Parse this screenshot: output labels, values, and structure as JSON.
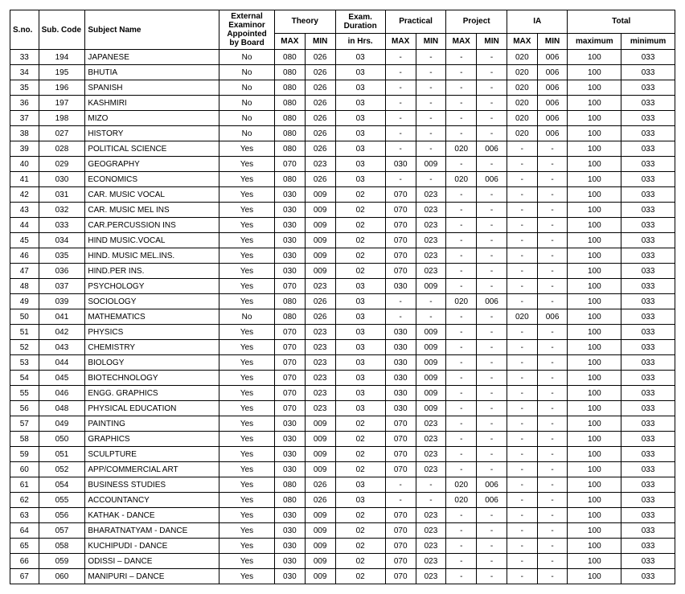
{
  "headers": {
    "sno": "S.no.",
    "code": "Sub. Code",
    "name": "Subject Name",
    "ext": "External Examinor Appointed by Board",
    "theory": "Theory",
    "duration": "Exam. Duration",
    "practical": "Practical",
    "project": "Project",
    "ia": "IA",
    "total": "Total",
    "max": "MAX",
    "min": "MIN",
    "hrs": "in Hrs.",
    "maximum": "maximum",
    "minimum": "minimum"
  },
  "rows": [
    {
      "sno": "33",
      "code": "194",
      "name": "JAPANESE",
      "ext": "No",
      "tmax": "080",
      "tmin": "026",
      "dur": "03",
      "pmax": "-",
      "pmin": "-",
      "prmax": "-",
      "prmin": "-",
      "iamax": "020",
      "iamin": "006",
      "totmax": "100",
      "totmin": "033"
    },
    {
      "sno": "34",
      "code": "195",
      "name": "BHUTIA",
      "ext": "No",
      "tmax": "080",
      "tmin": "026",
      "dur": "03",
      "pmax": "-",
      "pmin": "-",
      "prmax": "-",
      "prmin": "-",
      "iamax": "020",
      "iamin": "006",
      "totmax": "100",
      "totmin": "033"
    },
    {
      "sno": "35",
      "code": "196",
      "name": "SPANISH",
      "ext": "No",
      "tmax": "080",
      "tmin": "026",
      "dur": "03",
      "pmax": "-",
      "pmin": "-",
      "prmax": "-",
      "prmin": "-",
      "iamax": "020",
      "iamin": "006",
      "totmax": "100",
      "totmin": "033"
    },
    {
      "sno": "36",
      "code": "197",
      "name": "KASHMIRI",
      "ext": "No",
      "tmax": "080",
      "tmin": "026",
      "dur": "03",
      "pmax": "-",
      "pmin": "-",
      "prmax": "-",
      "prmin": "-",
      "iamax": "020",
      "iamin": "006",
      "totmax": "100",
      "totmin": "033"
    },
    {
      "sno": "37",
      "code": "198",
      "name": "MIZO",
      "ext": "No",
      "tmax": "080",
      "tmin": "026",
      "dur": "03",
      "pmax": "-",
      "pmin": "-",
      "prmax": "-",
      "prmin": "-",
      "iamax": "020",
      "iamin": "006",
      "totmax": "100",
      "totmin": "033"
    },
    {
      "sno": "38",
      "code": "027",
      "name": "HISTORY",
      "ext": "No",
      "tmax": "080",
      "tmin": "026",
      "dur": "03",
      "pmax": "-",
      "pmin": "-",
      "prmax": "-",
      "prmin": "-",
      "iamax": "020",
      "iamin": "006",
      "totmax": "100",
      "totmin": "033"
    },
    {
      "sno": "39",
      "code": "028",
      "name": "POLITICAL SCIENCE",
      "ext": "Yes",
      "tmax": "080",
      "tmin": "026",
      "dur": "03",
      "pmax": "-",
      "pmin": "-",
      "prmax": "020",
      "prmin": "006",
      "iamax": "-",
      "iamin": "-",
      "totmax": "100",
      "totmin": "033"
    },
    {
      "sno": "40",
      "code": "029",
      "name": "GEOGRAPHY",
      "ext": "Yes",
      "tmax": "070",
      "tmin": "023",
      "dur": "03",
      "pmax": "030",
      "pmin": "009",
      "prmax": "-",
      "prmin": "-",
      "iamax": "-",
      "iamin": "-",
      "totmax": "100",
      "totmin": "033"
    },
    {
      "sno": "41",
      "code": "030",
      "name": "ECONOMICS",
      "ext": "Yes",
      "tmax": "080",
      "tmin": "026",
      "dur": "03",
      "pmax": "-",
      "pmin": "-",
      "prmax": "020",
      "prmin": "006",
      "iamax": "-",
      "iamin": "-",
      "totmax": "100",
      "totmin": "033"
    },
    {
      "sno": "42",
      "code": "031",
      "name": "CAR. MUSIC VOCAL",
      "ext": "Yes",
      "tmax": "030",
      "tmin": "009",
      "dur": "02",
      "pmax": "070",
      "pmin": "023",
      "prmax": "-",
      "prmin": "-",
      "iamax": "-",
      "iamin": "-",
      "totmax": "100",
      "totmin": "033"
    },
    {
      "sno": "43",
      "code": "032",
      "name": "CAR. MUSIC MEL INS",
      "ext": "Yes",
      "tmax": "030",
      "tmin": "009",
      "dur": "02",
      "pmax": "070",
      "pmin": "023",
      "prmax": "-",
      "prmin": "-",
      "iamax": "-",
      "iamin": "-",
      "totmax": "100",
      "totmin": "033"
    },
    {
      "sno": "44",
      "code": "033",
      "name": "CAR.PERCUSSION INS",
      "ext": "Yes",
      "tmax": "030",
      "tmin": "009",
      "dur": "02",
      "pmax": "070",
      "pmin": "023",
      "prmax": "-",
      "prmin": "-",
      "iamax": "-",
      "iamin": "-",
      "totmax": "100",
      "totmin": "033"
    },
    {
      "sno": "45",
      "code": "034",
      "name": "HIND MUSIC.VOCAL",
      "ext": "Yes",
      "tmax": "030",
      "tmin": "009",
      "dur": "02",
      "pmax": "070",
      "pmin": "023",
      "prmax": "-",
      "prmin": "-",
      "iamax": "-",
      "iamin": "-",
      "totmax": "100",
      "totmin": "033"
    },
    {
      "sno": "46",
      "code": "035",
      "name": "HIND. MUSIC MEL.INS.",
      "ext": "Yes",
      "tmax": "030",
      "tmin": "009",
      "dur": "02",
      "pmax": "070",
      "pmin": "023",
      "prmax": "-",
      "prmin": "-",
      "iamax": "-",
      "iamin": "-",
      "totmax": "100",
      "totmin": "033"
    },
    {
      "sno": "47",
      "code": "036",
      "name": "HIND.PER INS.",
      "ext": "Yes",
      "tmax": "030",
      "tmin": "009",
      "dur": "02",
      "pmax": "070",
      "pmin": "023",
      "prmax": "-",
      "prmin": "-",
      "iamax": "-",
      "iamin": "-",
      "totmax": "100",
      "totmin": "033"
    },
    {
      "sno": "48",
      "code": "037",
      "name": "PSYCHOLOGY",
      "ext": "Yes",
      "tmax": "070",
      "tmin": "023",
      "dur": "03",
      "pmax": "030",
      "pmin": "009",
      "prmax": "-",
      "prmin": "-",
      "iamax": "-",
      "iamin": "-",
      "totmax": "100",
      "totmin": "033"
    },
    {
      "sno": "49",
      "code": "039",
      "name": "SOCIOLOGY",
      "ext": "Yes",
      "tmax": "080",
      "tmin": "026",
      "dur": "03",
      "pmax": "-",
      "pmin": "-",
      "prmax": "020",
      "prmin": "006",
      "iamax": "-",
      "iamin": "-",
      "totmax": "100",
      "totmin": "033"
    },
    {
      "sno": "50",
      "code": "041",
      "name": "MATHEMATICS",
      "ext": "No",
      "tmax": "080",
      "tmin": "026",
      "dur": "03",
      "pmax": "-",
      "pmin": "-",
      "prmax": "-",
      "prmin": "-",
      "iamax": "020",
      "iamin": "006",
      "totmax": "100",
      "totmin": "033"
    },
    {
      "sno": "51",
      "code": "042",
      "name": "PHYSICS",
      "ext": "Yes",
      "tmax": "070",
      "tmin": "023",
      "dur": "03",
      "pmax": "030",
      "pmin": "009",
      "prmax": "-",
      "prmin": "-",
      "iamax": "-",
      "iamin": "-",
      "totmax": "100",
      "totmin": "033"
    },
    {
      "sno": "52",
      "code": "043",
      "name": "CHEMISTRY",
      "ext": "Yes",
      "tmax": "070",
      "tmin": "023",
      "dur": "03",
      "pmax": "030",
      "pmin": "009",
      "prmax": "-",
      "prmin": "-",
      "iamax": "-",
      "iamin": "-",
      "totmax": "100",
      "totmin": "033"
    },
    {
      "sno": "53",
      "code": "044",
      "name": "BIOLOGY",
      "ext": "Yes",
      "tmax": "070",
      "tmin": "023",
      "dur": "03",
      "pmax": "030",
      "pmin": "009",
      "prmax": "-",
      "prmin": "-",
      "iamax": "-",
      "iamin": "-",
      "totmax": "100",
      "totmin": "033"
    },
    {
      "sno": "54",
      "code": "045",
      "name": "BIOTECHNOLOGY",
      "ext": "Yes",
      "tmax": "070",
      "tmin": "023",
      "dur": "03",
      "pmax": "030",
      "pmin": "009",
      "prmax": "-",
      "prmin": "-",
      "iamax": "-",
      "iamin": "-",
      "totmax": "100",
      "totmin": "033"
    },
    {
      "sno": "55",
      "code": "046",
      "name": "ENGG. GRAPHICS",
      "ext": "Yes",
      "tmax": "070",
      "tmin": "023",
      "dur": "03",
      "pmax": "030",
      "pmin": "009",
      "prmax": "-",
      "prmin": "-",
      "iamax": "-",
      "iamin": "-",
      "totmax": "100",
      "totmin": "033"
    },
    {
      "sno": "56",
      "code": "048",
      "name": "PHYSICAL EDUCATION",
      "ext": "Yes",
      "tmax": "070",
      "tmin": "023",
      "dur": "03",
      "pmax": "030",
      "pmin": "009",
      "prmax": "-",
      "prmin": "-",
      "iamax": "-",
      "iamin": "-",
      "totmax": "100",
      "totmin": "033"
    },
    {
      "sno": "57",
      "code": "049",
      "name": "PAINTING",
      "ext": "Yes",
      "tmax": "030",
      "tmin": "009",
      "dur": "02",
      "pmax": "070",
      "pmin": "023",
      "prmax": "-",
      "prmin": "-",
      "iamax": "-",
      "iamin": "-",
      "totmax": "100",
      "totmin": "033"
    },
    {
      "sno": "58",
      "code": "050",
      "name": "GRAPHICS",
      "ext": "Yes",
      "tmax": "030",
      "tmin": "009",
      "dur": "02",
      "pmax": "070",
      "pmin": "023",
      "prmax": "-",
      "prmin": "-",
      "iamax": "-",
      "iamin": "-",
      "totmax": "100",
      "totmin": "033"
    },
    {
      "sno": "59",
      "code": "051",
      "name": "SCULPTURE",
      "ext": "Yes",
      "tmax": "030",
      "tmin": "009",
      "dur": "02",
      "pmax": "070",
      "pmin": "023",
      "prmax": "-",
      "prmin": "-",
      "iamax": "-",
      "iamin": "-",
      "totmax": "100",
      "totmin": "033"
    },
    {
      "sno": "60",
      "code": "052",
      "name": "APP/COMMERCIAL ART",
      "ext": "Yes",
      "tmax": "030",
      "tmin": "009",
      "dur": "02",
      "pmax": "070",
      "pmin": "023",
      "prmax": "-",
      "prmin": "-",
      "iamax": "-",
      "iamin": "-",
      "totmax": "100",
      "totmin": "033"
    },
    {
      "sno": "61",
      "code": "054",
      "name": "BUSINESS STUDIES",
      "ext": "Yes",
      "tmax": "080",
      "tmin": "026",
      "dur": "03",
      "pmax": "-",
      "pmin": "-",
      "prmax": "020",
      "prmin": "006",
      "iamax": "-",
      "iamin": "-",
      "totmax": "100",
      "totmin": "033"
    },
    {
      "sno": "62",
      "code": "055",
      "name": "ACCOUNTANCY",
      "ext": "Yes",
      "tmax": "080",
      "tmin": "026",
      "dur": "03",
      "pmax": "-",
      "pmin": "-",
      "prmax": "020",
      "prmin": "006",
      "iamax": "-",
      "iamin": "-",
      "totmax": "100",
      "totmin": "033"
    },
    {
      "sno": "63",
      "code": "056",
      "name": "KATHAK - DANCE",
      "ext": "Yes",
      "tmax": "030",
      "tmin": "009",
      "dur": "02",
      "pmax": "070",
      "pmin": "023",
      "prmax": "-",
      "prmin": "-",
      "iamax": "-",
      "iamin": "-",
      "totmax": "100",
      "totmin": "033"
    },
    {
      "sno": "64",
      "code": "057",
      "name": "BHARATNATYAM - DANCE",
      "ext": "Yes",
      "tmax": "030",
      "tmin": "009",
      "dur": "02",
      "pmax": "070",
      "pmin": "023",
      "prmax": "-",
      "prmin": "-",
      "iamax": "-",
      "iamin": "-",
      "totmax": "100",
      "totmin": "033"
    },
    {
      "sno": "65",
      "code": "058",
      "name": "KUCHIPUDI - DANCE",
      "ext": "Yes",
      "tmax": "030",
      "tmin": "009",
      "dur": "02",
      "pmax": "070",
      "pmin": "023",
      "prmax": "-",
      "prmin": "-",
      "iamax": "-",
      "iamin": "-",
      "totmax": "100",
      "totmin": "033"
    },
    {
      "sno": "66",
      "code": "059",
      "name": "ODISSI – DANCE",
      "ext": "Yes",
      "tmax": "030",
      "tmin": "009",
      "dur": "02",
      "pmax": "070",
      "pmin": "023",
      "prmax": "-",
      "prmin": "-",
      "iamax": "-",
      "iamin": "-",
      "totmax": "100",
      "totmin": "033"
    },
    {
      "sno": "67",
      "code": "060",
      "name": "MANIPURI – DANCE",
      "ext": "Yes",
      "tmax": "030",
      "tmin": "009",
      "dur": "02",
      "pmax": "070",
      "pmin": "023",
      "prmax": "-",
      "prmin": "-",
      "iamax": "-",
      "iamin": "-",
      "totmax": "100",
      "totmin": "033"
    }
  ]
}
